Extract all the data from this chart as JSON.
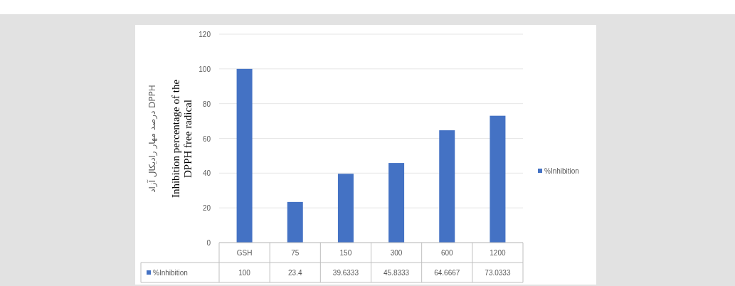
{
  "chart_data": {
    "type": "bar",
    "ylabel": "درصد مهار رادیکال آزاد DPPH",
    "annotations": [
      "Inhibition percentage of the DPPH free radical"
    ],
    "categories": [
      "GSH",
      "75",
      "150",
      "300",
      "600",
      "1200"
    ],
    "series": [
      {
        "name": "%Inhibition",
        "color": "#4472c4",
        "values": [
          100,
          23.4,
          39.6333,
          45.8333,
          64.6667,
          73.0333
        ]
      }
    ],
    "ylim": [
      0,
      120
    ],
    "yticks": [
      0,
      20,
      40,
      60,
      80,
      100,
      120
    ],
    "grid": "y",
    "legend": "right",
    "data_labels": true
  }
}
